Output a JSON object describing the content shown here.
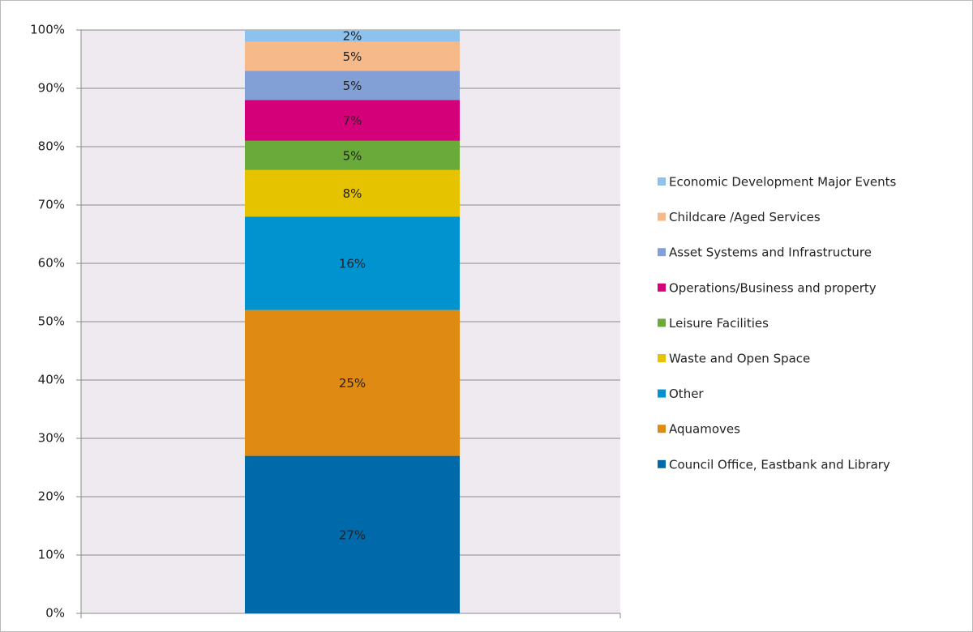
{
  "chart_data": {
    "type": "stacked_bar",
    "series": [
      {
        "name": "Council Office, Eastbank and Library",
        "color": "#0069aa",
        "values": [
          27
        ],
        "value_labels": [
          "27%"
        ]
      },
      {
        "name": "Aquamoves",
        "color": "#df8a12",
        "values": [
          25
        ],
        "value_labels": [
          "25%"
        ]
      },
      {
        "name": "Other",
        "color": "#0093d0",
        "values": [
          16
        ],
        "value_labels": [
          "16%"
        ]
      },
      {
        "name": "Waste and Open Space",
        "color": "#e6c300",
        "values": [
          8
        ],
        "value_labels": [
          "8%"
        ]
      },
      {
        "name": "Leisure Facilities",
        "color": "#6aaa3a",
        "values": [
          5
        ],
        "value_labels": [
          "5%"
        ]
      },
      {
        "name": "Operations/Business and property",
        "color": "#d4007a",
        "values": [
          7
        ],
        "value_labels": [
          "7%"
        ]
      },
      {
        "name": "Asset Systems and Infrastructure",
        "color": "#829fd6",
        "values": [
          5
        ],
        "value_labels": [
          "5%"
        ]
      },
      {
        "name": "Childcare /Aged Services",
        "color": "#f5b98a",
        "values": [
          5
        ],
        "value_labels": [
          "5%"
        ]
      },
      {
        "name": "Economic Development Major Events",
        "color": "#8dc2ef",
        "values": [
          2
        ],
        "value_labels": [
          "2%"
        ]
      }
    ],
    "ylim": [
      0,
      100
    ],
    "yticks": [
      {
        "value": 0,
        "label": "0%"
      },
      {
        "value": 10,
        "label": "10%"
      },
      {
        "value": 20,
        "label": "20%"
      },
      {
        "value": 30,
        "label": "30%"
      },
      {
        "value": 40,
        "label": "40%"
      },
      {
        "value": 50,
        "label": "50%"
      },
      {
        "value": 60,
        "label": "60%"
      },
      {
        "value": 70,
        "label": "70%"
      },
      {
        "value": 80,
        "label": "80%"
      },
      {
        "value": 90,
        "label": "90%"
      },
      {
        "value": 100,
        "label": "100%"
      }
    ],
    "grid": true,
    "legend": "right"
  }
}
